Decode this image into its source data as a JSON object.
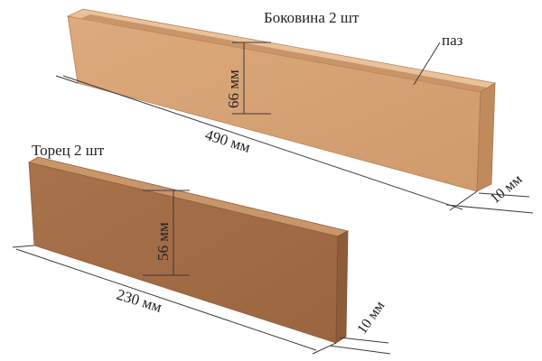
{
  "colors": {
    "background": "#ffffff",
    "board_light_top": "#e7be95",
    "board_light_face": "#d9a679",
    "board_light_edge": "#c18d61",
    "board_dark_top": "#c89467",
    "board_dark_face": "#a56f48",
    "board_dark_edge": "#8f5f3d",
    "line": "#3a3a3a"
  },
  "side_board": {
    "title": "Боковина 2 шт",
    "groove_label": "паз",
    "height_label": "66 мм",
    "length_label": "490 мм",
    "thickness_label": "10 мм"
  },
  "end_board": {
    "title": "Торец 2 шт",
    "height_label": "56 мм",
    "length_label": "230 мм",
    "thickness_label": "10 мм"
  }
}
